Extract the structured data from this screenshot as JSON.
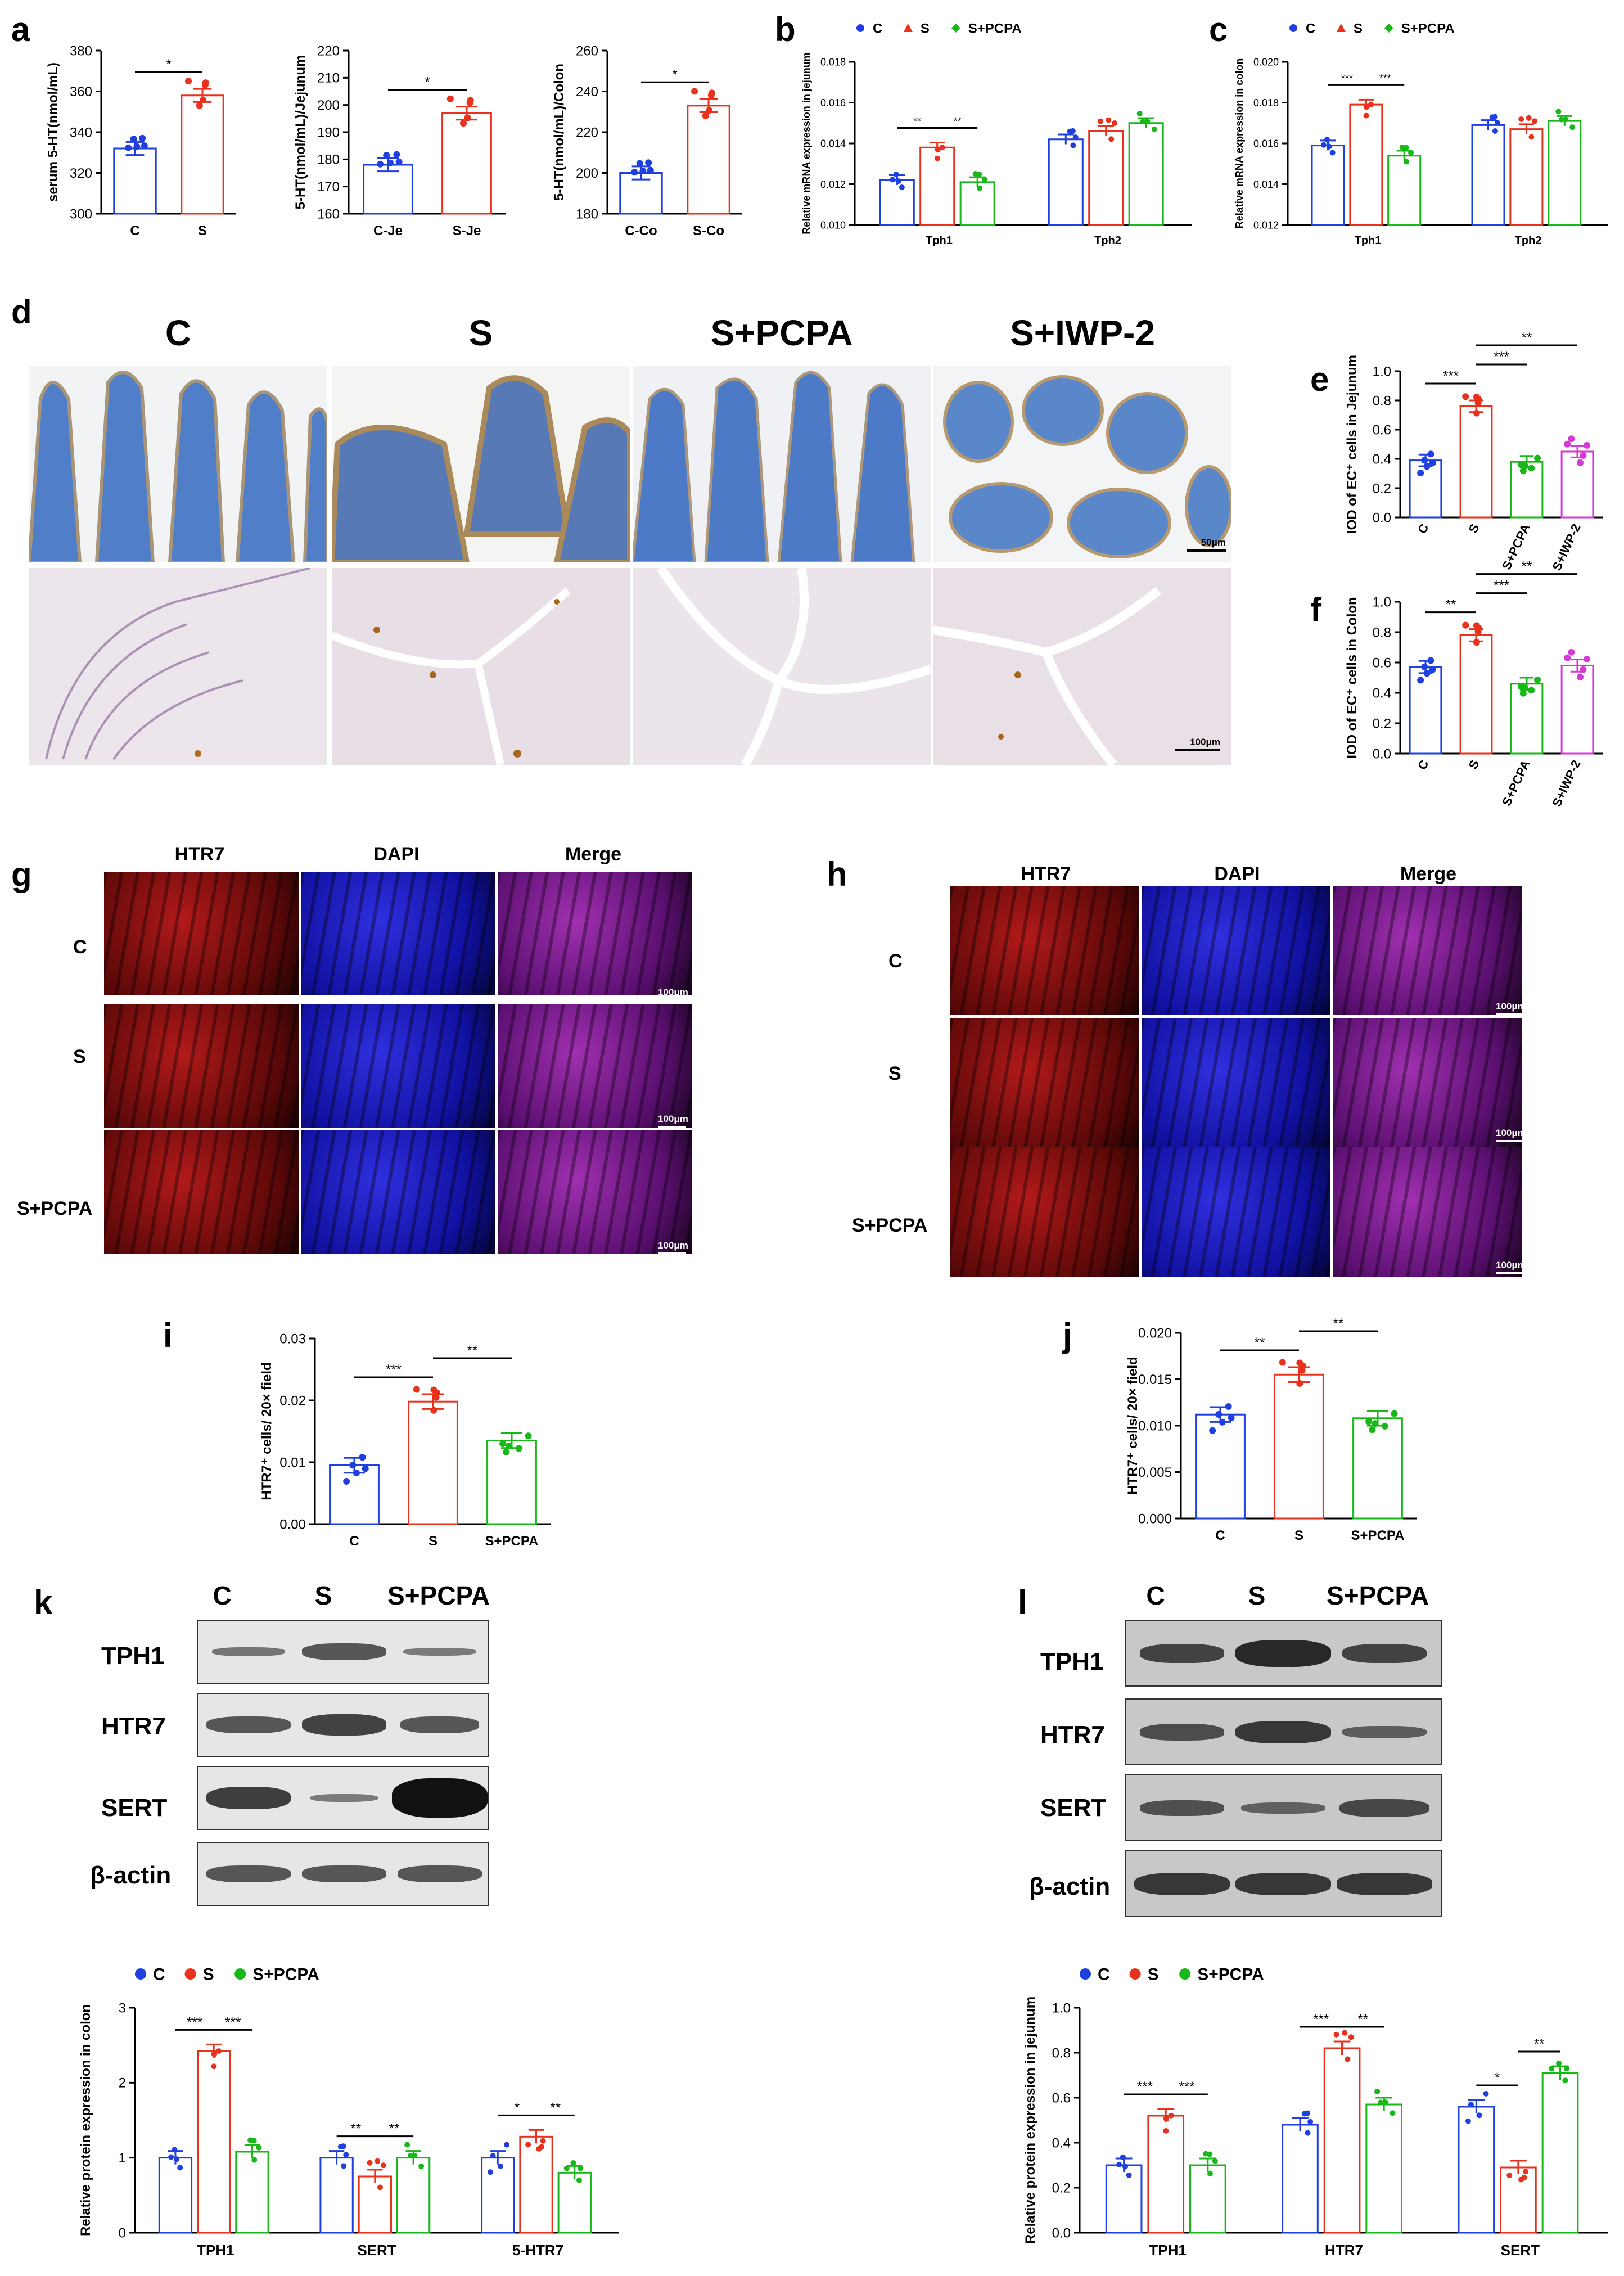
{
  "panel_labels": {
    "a": "a",
    "b": "b",
    "c": "c",
    "d": "d",
    "e": "e",
    "f": "f",
    "g": "g",
    "h": "h",
    "i": "i",
    "j": "j",
    "k": "k",
    "l": "l"
  },
  "colors": {
    "C": "#1f3fe0",
    "S": "#e8321e",
    "PCPA": "#17b817",
    "IWP2": "#d63ad6",
    "fluor_red": "#8a1010",
    "fluor_blue": "#1a1aa0"
  },
  "histology": {
    "group_titles": [
      "C",
      "S",
      "S+PCPA",
      "S+IWP-2"
    ],
    "scale_top": "50μm",
    "scale_bottom": "100μm"
  },
  "fluor_g": {
    "columns": [
      "HTR7",
      "DAPI",
      "Merge"
    ],
    "rows": [
      "C",
      "S",
      "S+PCPA"
    ],
    "scale": "100μm"
  },
  "fluor_h": {
    "columns": [
      "HTR7",
      "DAPI",
      "Merge"
    ],
    "rows": [
      "C",
      "S",
      "S+PCPA"
    ],
    "scale": "100μm"
  },
  "blot_k": {
    "lanes": [
      "C",
      "S",
      "S+PCPA"
    ],
    "bands": [
      "TPH1",
      "HTR7",
      "SERT",
      "β-actin"
    ]
  },
  "blot_l": {
    "lanes": [
      "C",
      "S",
      "S+PCPA"
    ],
    "bands": [
      "TPH1",
      "HTR7",
      "SERT",
      "β-actin"
    ]
  },
  "chart_data": [
    {
      "id": "a1",
      "panel": "a",
      "type": "bar",
      "categories": [
        "C",
        "S"
      ],
      "values": [
        332,
        358
      ],
      "ylabel": "serum 5-HT(nmol/mL)",
      "ylim": [
        300,
        380
      ],
      "yticks": [
        300,
        320,
        340,
        360,
        380
      ],
      "significance": [
        {
          "pair": [
            0,
            1
          ],
          "label": "*"
        }
      ]
    },
    {
      "id": "a2",
      "panel": "a",
      "type": "bar",
      "categories": [
        "C-Je",
        "S-Je"
      ],
      "values": [
        178,
        197
      ],
      "ylabel": "5-HT(nmol/mL)/Jejunum",
      "ylim": [
        160,
        220
      ],
      "yticks": [
        160,
        170,
        180,
        190,
        200,
        210,
        220
      ],
      "significance": [
        {
          "pair": [
            0,
            1
          ],
          "label": "*"
        }
      ]
    },
    {
      "id": "a3",
      "panel": "a",
      "type": "bar",
      "categories": [
        "C-Co",
        "S-Co"
      ],
      "values": [
        200,
        233
      ],
      "ylabel": "5-HT(nmol/mL)/Colon",
      "ylim": [
        180,
        260
      ],
      "yticks": [
        180,
        200,
        220,
        240,
        260
      ],
      "significance": [
        {
          "pair": [
            0,
            1
          ],
          "label": "*"
        }
      ]
    },
    {
      "id": "b",
      "panel": "b",
      "type": "bar",
      "categories": [
        "Tph1",
        "Tph2"
      ],
      "series": [
        {
          "name": "C",
          "values": [
            0.0122,
            0.0142
          ]
        },
        {
          "name": "S",
          "values": [
            0.0138,
            0.0146
          ]
        },
        {
          "name": "S+PCPA",
          "values": [
            0.0121,
            0.015
          ]
        }
      ],
      "ylabel": "Relative mRNA expression in jejunum",
      "ylim": [
        0.01,
        0.018
      ],
      "yticks": [
        0.01,
        0.012,
        0.014,
        0.016,
        0.018
      ],
      "legend": "top",
      "significance": [
        {
          "cat": 0,
          "pair": [
            0,
            1
          ],
          "label": "**"
        },
        {
          "cat": 0,
          "pair": [
            1,
            2
          ],
          "label": "**"
        }
      ]
    },
    {
      "id": "c",
      "panel": "c",
      "type": "bar",
      "categories": [
        "Tph1",
        "Tph2"
      ],
      "series": [
        {
          "name": "C",
          "values": [
            0.0159,
            0.0169
          ]
        },
        {
          "name": "S",
          "values": [
            0.0179,
            0.0167
          ]
        },
        {
          "name": "S+PCPA",
          "values": [
            0.0154,
            0.0171
          ]
        }
      ],
      "ylabel": "Relative mRNA expression in colon",
      "ylim": [
        0.012,
        0.02
      ],
      "yticks": [
        0.012,
        0.014,
        0.016,
        0.018,
        0.02
      ],
      "legend": "top",
      "significance": [
        {
          "cat": 0,
          "pair": [
            0,
            1
          ],
          "label": "***"
        },
        {
          "cat": 0,
          "pair": [
            1,
            2
          ],
          "label": "***"
        }
      ]
    },
    {
      "id": "e",
      "panel": "e",
      "type": "bar",
      "categories": [
        "C",
        "S",
        "S+PCPA",
        "S+IWP-2"
      ],
      "values": [
        0.39,
        0.76,
        0.38,
        0.45
      ],
      "ylabel": "IOD of EC⁺ cells in Jejunum",
      "ylim": [
        0,
        1.0
      ],
      "yticks": [
        0.0,
        0.2,
        0.4,
        0.6,
        0.8,
        1.0
      ],
      "significance": [
        {
          "pair": [
            0,
            1
          ],
          "label": "***"
        },
        {
          "pair": [
            1,
            2
          ],
          "label": "***"
        },
        {
          "pair": [
            1,
            3
          ],
          "label": "**"
        }
      ]
    },
    {
      "id": "f",
      "panel": "f",
      "type": "bar",
      "categories": [
        "C",
        "S",
        "S+PCPA",
        "S+IWP-2"
      ],
      "values": [
        0.57,
        0.78,
        0.46,
        0.58
      ],
      "ylabel": "IOD of EC⁺ cells in Colon",
      "ylim": [
        0,
        1.0
      ],
      "yticks": [
        0.0,
        0.2,
        0.4,
        0.6,
        0.8,
        1.0
      ],
      "significance": [
        {
          "pair": [
            0,
            1
          ],
          "label": "**"
        },
        {
          "pair": [
            1,
            2
          ],
          "label": "***"
        },
        {
          "pair": [
            1,
            3
          ],
          "label": "**"
        }
      ]
    },
    {
      "id": "i",
      "panel": "i",
      "type": "bar",
      "categories": [
        "C",
        "S",
        "S+PCPA"
      ],
      "values": [
        0.0095,
        0.0198,
        0.0135
      ],
      "ylabel": "HTR7⁺ cells/ 20× field",
      "ylim": [
        0,
        0.03
      ],
      "yticks": [
        0.0,
        0.01,
        0.02,
        0.03
      ],
      "significance": [
        {
          "pair": [
            0,
            1
          ],
          "label": "***"
        },
        {
          "pair": [
            1,
            2
          ],
          "label": "**"
        }
      ]
    },
    {
      "id": "j",
      "panel": "j",
      "type": "bar",
      "categories": [
        "C",
        "S",
        "S+PCPA"
      ],
      "values": [
        0.0112,
        0.0155,
        0.0108
      ],
      "ylabel": "HTR7⁺ cells/ 20× field",
      "ylim": [
        0,
        0.02
      ],
      "yticks": [
        0.0,
        0.005,
        0.01,
        0.015,
        0.02
      ],
      "significance": [
        {
          "pair": [
            0,
            1
          ],
          "label": "**"
        },
        {
          "pair": [
            1,
            2
          ],
          "label": "**"
        }
      ]
    },
    {
      "id": "k",
      "panel": "k",
      "type": "bar",
      "categories": [
        "TPH1",
        "SERT",
        "5-HTR7"
      ],
      "series": [
        {
          "name": "C",
          "values": [
            1.0,
            1.0,
            1.0
          ]
        },
        {
          "name": "S",
          "values": [
            2.42,
            0.75,
            1.28
          ]
        },
        {
          "name": "S+PCPA",
          "values": [
            1.08,
            1.0,
            0.8
          ]
        }
      ],
      "ylabel": "Relative protein expression in colon",
      "ylim": [
        0,
        3
      ],
      "yticks": [
        0,
        1,
        2,
        3
      ],
      "legend": "top",
      "significance": [
        {
          "cat": 0,
          "pair": [
            0,
            1
          ],
          "label": "***"
        },
        {
          "cat": 0,
          "pair": [
            1,
            2
          ],
          "label": "***"
        },
        {
          "cat": 1,
          "pair": [
            0,
            1
          ],
          "label": "**"
        },
        {
          "cat": 1,
          "pair": [
            1,
            2
          ],
          "label": "**"
        },
        {
          "cat": 2,
          "pair": [
            0,
            1
          ],
          "label": "*"
        },
        {
          "cat": 2,
          "pair": [
            1,
            2
          ],
          "label": "**"
        }
      ]
    },
    {
      "id": "l",
      "panel": "l",
      "type": "bar",
      "categories": [
        "TPH1",
        "HTR7",
        "SERT"
      ],
      "series": [
        {
          "name": "C",
          "values": [
            0.3,
            0.48,
            0.56
          ]
        },
        {
          "name": "S",
          "values": [
            0.52,
            0.82,
            0.29
          ]
        },
        {
          "name": "S+PCPA",
          "values": [
            0.3,
            0.57,
            0.71
          ]
        }
      ],
      "ylabel": "Relative  protein expression in jejunum",
      "ylim": [
        0,
        1.0
      ],
      "yticks": [
        0.0,
        0.2,
        0.4,
        0.6,
        0.8,
        1.0
      ],
      "legend": "top",
      "significance": [
        {
          "cat": 0,
          "pair": [
            0,
            1
          ],
          "label": "***"
        },
        {
          "cat": 0,
          "pair": [
            1,
            2
          ],
          "label": "***"
        },
        {
          "cat": 1,
          "pair": [
            0,
            1
          ],
          "label": "***"
        },
        {
          "cat": 1,
          "pair": [
            1,
            2
          ],
          "label": "**"
        },
        {
          "cat": 2,
          "pair": [
            0,
            1
          ],
          "label": "*"
        },
        {
          "cat": 2,
          "pair": [
            1,
            2
          ],
          "label": "**"
        }
      ]
    }
  ]
}
